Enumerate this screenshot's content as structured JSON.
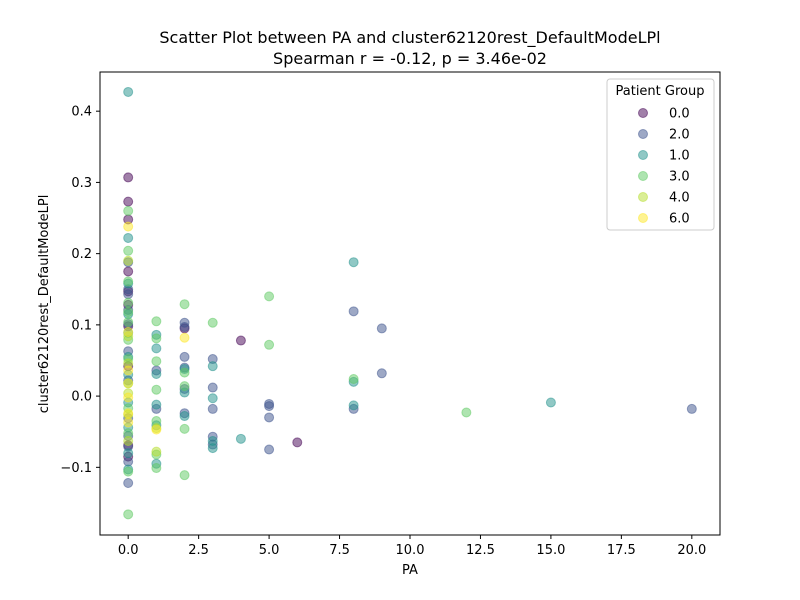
{
  "chart_data": {
    "type": "scatter",
    "title": "Scatter Plot between PA and cluster62120rest_DefaultModeLPl",
    "subtitle": "Spearman r = -0.12, p = 3.46e-02",
    "xlabel": "PA",
    "ylabel": "cluster62120rest_DefaultModeLPl",
    "xlim": [
      -1.0,
      21.0
    ],
    "ylim": [
      -0.195,
      0.455
    ],
    "xticks": [
      0.0,
      2.5,
      5.0,
      7.5,
      10.0,
      12.5,
      15.0,
      17.5,
      20.0
    ],
    "xtick_labels": [
      "0.0",
      "2.5",
      "5.0",
      "7.5",
      "10.0",
      "12.5",
      "15.0",
      "17.5",
      "20.0"
    ],
    "yticks": [
      -0.1,
      0.0,
      0.1,
      0.2,
      0.3,
      0.4
    ],
    "ytick_labels": [
      "−0.1",
      "0.0",
      "0.1",
      "0.2",
      "0.3",
      "0.4"
    ],
    "grid": false,
    "legend": {
      "title": "Patient Group",
      "position": "upper-right"
    },
    "series": [
      {
        "name": "0.0",
        "color": "#440154",
        "points": [
          [
            0,
            0.307
          ],
          [
            0,
            0.273
          ],
          [
            0,
            0.248
          ],
          [
            0,
            0.175
          ],
          [
            0,
            0.147
          ],
          [
            0,
            0.128
          ],
          [
            0,
            0.098
          ],
          [
            0,
            0.042
          ],
          [
            0,
            -0.069
          ],
          [
            0,
            -0.085
          ],
          [
            2,
            0.095
          ],
          [
            4,
            0.078
          ],
          [
            6,
            -0.065
          ]
        ]
      },
      {
        "name": "2.0",
        "color": "#3b528b",
        "points": [
          [
            0,
            0.188
          ],
          [
            0,
            0.15
          ],
          [
            0,
            0.143
          ],
          [
            0,
            0.121
          ],
          [
            0,
            0.101
          ],
          [
            0,
            0.063
          ],
          [
            0,
            0.022
          ],
          [
            0,
            -0.031
          ],
          [
            0,
            -0.056
          ],
          [
            0,
            -0.071
          ],
          [
            0,
            -0.092
          ],
          [
            0,
            -0.122
          ],
          [
            1,
            0.036
          ],
          [
            1,
            -0.018
          ],
          [
            2,
            0.103
          ],
          [
            2,
            0.097
          ],
          [
            2,
            0.055
          ],
          [
            2,
            0.04
          ],
          [
            2,
            0.01
          ],
          [
            2,
            -0.024
          ],
          [
            3,
            0.052
          ],
          [
            3,
            0.012
          ],
          [
            3,
            -0.018
          ],
          [
            3,
            -0.057
          ],
          [
            3,
            -0.068
          ],
          [
            5,
            -0.011
          ],
          [
            5,
            -0.014
          ],
          [
            5,
            -0.03
          ],
          [
            5,
            -0.075
          ],
          [
            8,
            0.119
          ],
          [
            8,
            -0.018
          ],
          [
            9,
            0.095
          ],
          [
            9,
            0.032
          ],
          [
            20,
            -0.018
          ]
        ]
      },
      {
        "name": "1.0",
        "color": "#21918c",
        "points": [
          [
            0,
            0.427
          ],
          [
            0,
            0.222
          ],
          [
            0,
            0.158
          ],
          [
            0,
            0.115
          ],
          [
            0,
            0.089
          ],
          [
            0,
            0.055
          ],
          [
            0,
            0.03
          ],
          [
            0,
            -0.009
          ],
          [
            0,
            -0.044
          ],
          [
            0,
            -0.08
          ],
          [
            0,
            -0.103
          ],
          [
            1,
            0.086
          ],
          [
            1,
            0.067
          ],
          [
            1,
            0.031
          ],
          [
            1,
            -0.012
          ],
          [
            1,
            -0.041
          ],
          [
            1,
            -0.095
          ],
          [
            2,
            0.038
          ],
          [
            2,
            0.005
          ],
          [
            2,
            -0.028
          ],
          [
            3,
            0.042
          ],
          [
            3,
            -0.003
          ],
          [
            3,
            -0.063
          ],
          [
            3,
            -0.073
          ],
          [
            4,
            -0.06
          ],
          [
            8,
            0.188
          ],
          [
            8,
            0.02
          ],
          [
            8,
            -0.013
          ],
          [
            15,
            -0.009
          ]
        ]
      },
      {
        "name": "3.0",
        "color": "#5ec962",
        "points": [
          [
            0,
            0.26
          ],
          [
            0,
            0.204
          ],
          [
            0,
            0.161
          ],
          [
            0,
            0.131
          ],
          [
            0,
            0.118
          ],
          [
            0,
            0.104
          ],
          [
            0,
            0.079
          ],
          [
            0,
            0.052
          ],
          [
            0,
            0.018
          ],
          [
            0,
            -0.017
          ],
          [
            0,
            -0.052
          ],
          [
            0,
            -0.106
          ],
          [
            0,
            -0.166
          ],
          [
            1,
            0.105
          ],
          [
            1,
            0.081
          ],
          [
            1,
            0.049
          ],
          [
            1,
            0.009
          ],
          [
            1,
            -0.035
          ],
          [
            1,
            -0.082
          ],
          [
            1,
            -0.101
          ],
          [
            2,
            0.129
          ],
          [
            2,
            0.033
          ],
          [
            2,
            0.014
          ],
          [
            2,
            -0.046
          ],
          [
            2,
            -0.111
          ],
          [
            3,
            0.103
          ],
          [
            5,
            0.14
          ],
          [
            5,
            0.072
          ],
          [
            8,
            0.024
          ],
          [
            12,
            -0.023
          ]
        ]
      },
      {
        "name": "4.0",
        "color": "#b5de2b",
        "points": [
          [
            0,
            0.19
          ],
          [
            0,
            0.084
          ],
          [
            0,
            0.046
          ],
          [
            0,
            0.004
          ],
          [
            0,
            -0.026
          ],
          [
            0,
            -0.063
          ],
          [
            1,
            -0.078
          ],
          [
            1,
            -0.045
          ]
        ]
      },
      {
        "name": "6.0",
        "color": "#fde725",
        "points": [
          [
            0,
            0.238
          ],
          [
            0,
            0.09
          ],
          [
            0,
            0.036
          ],
          [
            0,
            0.018
          ],
          [
            0,
            -0.002
          ],
          [
            0,
            -0.024
          ],
          [
            0,
            -0.037
          ],
          [
            1,
            -0.047
          ],
          [
            2,
            0.082
          ]
        ]
      }
    ]
  }
}
